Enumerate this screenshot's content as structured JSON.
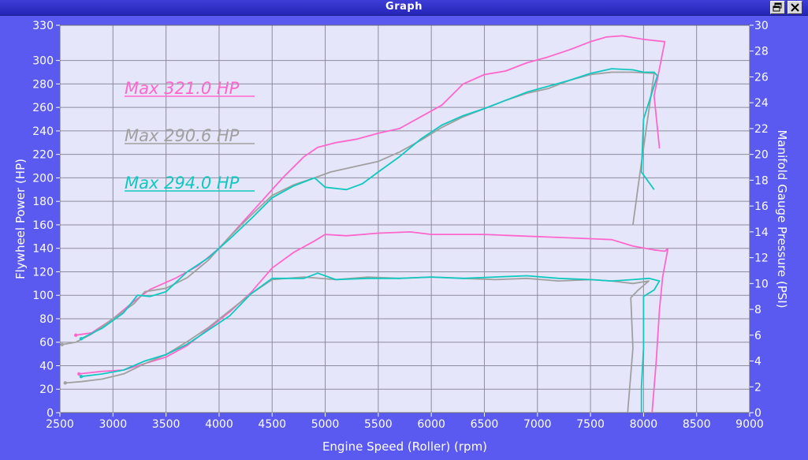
{
  "window": {
    "title": "Graph"
  },
  "chart_data": {
    "type": "line",
    "xlabel": "Engine Speed (Roller) (rpm)",
    "ylabel": "Flywheel Power (HP)",
    "y2label": "Manifold Gauge Pressure (PSI)",
    "xlim": [
      2500,
      9000
    ],
    "ylim": [
      0,
      330
    ],
    "y2lim": [
      0,
      30
    ],
    "grid": true,
    "x_ticks": [
      2500,
      3000,
      3500,
      4000,
      4500,
      5000,
      5500,
      6000,
      6500,
      7000,
      7500,
      8000,
      8500,
      9000
    ],
    "y_ticks": [
      0,
      20,
      40,
      60,
      80,
      100,
      120,
      140,
      160,
      180,
      200,
      220,
      240,
      260,
      280,
      300,
      330
    ],
    "y2_ticks": [
      0,
      2,
      4,
      6,
      8,
      10,
      12,
      14,
      16,
      18,
      20,
      22,
      24,
      26,
      28,
      30
    ],
    "annotations": [
      {
        "text": "Max 321.0 HP",
        "color": "#ff66cc"
      },
      {
        "text": "Max 290.6 HP",
        "color": "#a0a0a0"
      },
      {
        "text": "Max 294.0 HP",
        "color": "#10c8c0"
      }
    ],
    "series": [
      {
        "kind": "power",
        "axis": "y",
        "color": "#ff66cc",
        "points": [
          [
            2650,
            66
          ],
          [
            2800,
            68
          ],
          [
            3000,
            80
          ],
          [
            3200,
            95
          ],
          [
            3350,
            105
          ],
          [
            3600,
            115
          ],
          [
            3800,
            125
          ],
          [
            4000,
            140
          ],
          [
            4200,
            160
          ],
          [
            4400,
            180
          ],
          [
            4600,
            200
          ],
          [
            4800,
            218
          ],
          [
            4930,
            226
          ],
          [
            5100,
            230
          ],
          [
            5300,
            233
          ],
          [
            5500,
            238
          ],
          [
            5700,
            242
          ],
          [
            5900,
            252
          ],
          [
            6100,
            262
          ],
          [
            6300,
            280
          ],
          [
            6500,
            288
          ],
          [
            6700,
            291
          ],
          [
            6900,
            298
          ],
          [
            7100,
            303
          ],
          [
            7300,
            309
          ],
          [
            7500,
            316
          ],
          [
            7650,
            320
          ],
          [
            7800,
            321
          ],
          [
            8000,
            318
          ],
          [
            8200,
            316
          ],
          [
            8100,
            270
          ],
          [
            8150,
            225
          ]
        ]
      },
      {
        "kind": "power",
        "axis": "y",
        "color": "#a0a0a0",
        "points": [
          [
            2520,
            58
          ],
          [
            2650,
            60
          ],
          [
            2800,
            67
          ],
          [
            3000,
            80
          ],
          [
            3200,
            93
          ],
          [
            3300,
            103
          ],
          [
            3500,
            106
          ],
          [
            3700,
            115
          ],
          [
            3900,
            130
          ],
          [
            4100,
            150
          ],
          [
            4300,
            168
          ],
          [
            4500,
            185
          ],
          [
            4700,
            194
          ],
          [
            4900,
            200
          ],
          [
            5050,
            205
          ],
          [
            5300,
            210
          ],
          [
            5500,
            214
          ],
          [
            5700,
            222
          ],
          [
            5900,
            232
          ],
          [
            6100,
            243
          ],
          [
            6300,
            252
          ],
          [
            6500,
            259
          ],
          [
            6700,
            266
          ],
          [
            6900,
            272
          ],
          [
            7100,
            276
          ],
          [
            7300,
            283
          ],
          [
            7500,
            288
          ],
          [
            7700,
            290
          ],
          [
            7900,
            290
          ],
          [
            8100,
            289
          ],
          [
            7960,
            200
          ],
          [
            7900,
            160
          ]
        ]
      },
      {
        "kind": "power",
        "axis": "y",
        "color": "#10c8c0",
        "points": [
          [
            2700,
            63
          ],
          [
            2900,
            72
          ],
          [
            3100,
            85
          ],
          [
            3230,
            100
          ],
          [
            3350,
            99
          ],
          [
            3500,
            103
          ],
          [
            3700,
            120
          ],
          [
            3900,
            132
          ],
          [
            4100,
            148
          ],
          [
            4300,
            165
          ],
          [
            4500,
            183
          ],
          [
            4700,
            193
          ],
          [
            4900,
            200
          ],
          [
            5000,
            192
          ],
          [
            5100,
            191
          ],
          [
            5200,
            190
          ],
          [
            5350,
            195
          ],
          [
            5500,
            205
          ],
          [
            5700,
            218
          ],
          [
            5900,
            233
          ],
          [
            6100,
            245
          ],
          [
            6300,
            253
          ],
          [
            6500,
            259
          ],
          [
            6700,
            266
          ],
          [
            6900,
            273
          ],
          [
            7100,
            278
          ],
          [
            7300,
            283
          ],
          [
            7500,
            289
          ],
          [
            7700,
            293
          ],
          [
            7900,
            292
          ],
          [
            8000,
            290
          ],
          [
            8100,
            290
          ],
          [
            8130,
            287
          ],
          [
            8000,
            250
          ],
          [
            7980,
            205
          ],
          [
            8100,
            190
          ]
        ]
      },
      {
        "kind": "boost",
        "axis": "y2",
        "color": "#ff66cc",
        "points": [
          [
            2680,
            3.0
          ],
          [
            2900,
            3.2
          ],
          [
            3100,
            3.3
          ],
          [
            3300,
            3.8
          ],
          [
            3500,
            4.3
          ],
          [
            3700,
            5.2
          ],
          [
            3900,
            6.5
          ],
          [
            4100,
            7.8
          ],
          [
            4300,
            9.3
          ],
          [
            4500,
            11.2
          ],
          [
            4700,
            12.4
          ],
          [
            4900,
            13.3
          ],
          [
            5000,
            13.8
          ],
          [
            5200,
            13.7
          ],
          [
            5500,
            13.9
          ],
          [
            5800,
            14.0
          ],
          [
            6000,
            13.8
          ],
          [
            6300,
            13.8
          ],
          [
            6500,
            13.8
          ],
          [
            6800,
            13.7
          ],
          [
            7100,
            13.6
          ],
          [
            7400,
            13.5
          ],
          [
            7700,
            13.4
          ],
          [
            7900,
            12.9
          ],
          [
            8100,
            12.6
          ],
          [
            8200,
            12.5
          ],
          [
            8230,
            12.7
          ],
          [
            8180,
            10.5
          ],
          [
            8150,
            8.0
          ],
          [
            8120,
            4.0
          ],
          [
            8080,
            0
          ]
        ]
      },
      {
        "kind": "boost",
        "axis": "y2",
        "color": "#a0a0a0",
        "points": [
          [
            2550,
            2.3
          ],
          [
            2700,
            2.4
          ],
          [
            2900,
            2.6
          ],
          [
            3100,
            3.0
          ],
          [
            3300,
            3.8
          ],
          [
            3500,
            4.5
          ],
          [
            3700,
            5.5
          ],
          [
            3900,
            6.6
          ],
          [
            4100,
            7.9
          ],
          [
            4300,
            9.2
          ],
          [
            4500,
            10.3
          ],
          [
            4800,
            10.5
          ],
          [
            5100,
            10.3
          ],
          [
            5400,
            10.5
          ],
          [
            5700,
            10.4
          ],
          [
            6000,
            10.5
          ],
          [
            6300,
            10.4
          ],
          [
            6600,
            10.3
          ],
          [
            6900,
            10.4
          ],
          [
            7200,
            10.2
          ],
          [
            7500,
            10.3
          ],
          [
            7700,
            10.2
          ],
          [
            7900,
            10.0
          ],
          [
            8050,
            10.2
          ],
          [
            7950,
            9.5
          ],
          [
            7880,
            8.9
          ],
          [
            7900,
            5.0
          ],
          [
            7870,
            2.0
          ],
          [
            7850,
            0
          ]
        ]
      },
      {
        "kind": "boost",
        "axis": "y2",
        "color": "#10c8c0",
        "points": [
          [
            2700,
            2.8
          ],
          [
            2900,
            3.0
          ],
          [
            3100,
            3.3
          ],
          [
            3300,
            4.0
          ],
          [
            3500,
            4.5
          ],
          [
            3700,
            5.3
          ],
          [
            3900,
            6.4
          ],
          [
            4100,
            7.5
          ],
          [
            4300,
            9.2
          ],
          [
            4500,
            10.4
          ],
          [
            4800,
            10.4
          ],
          [
            4930,
            10.8
          ],
          [
            5100,
            10.3
          ],
          [
            5400,
            10.4
          ],
          [
            5700,
            10.4
          ],
          [
            6000,
            10.5
          ],
          [
            6300,
            10.4
          ],
          [
            6600,
            10.5
          ],
          [
            6900,
            10.6
          ],
          [
            7200,
            10.4
          ],
          [
            7500,
            10.3
          ],
          [
            7700,
            10.2
          ],
          [
            7900,
            10.3
          ],
          [
            8050,
            10.4
          ],
          [
            8150,
            10.2
          ],
          [
            8100,
            9.5
          ],
          [
            8000,
            9.0
          ],
          [
            8000,
            5.0
          ],
          [
            7980,
            2.0
          ],
          [
            7980,
            0
          ]
        ]
      }
    ]
  }
}
